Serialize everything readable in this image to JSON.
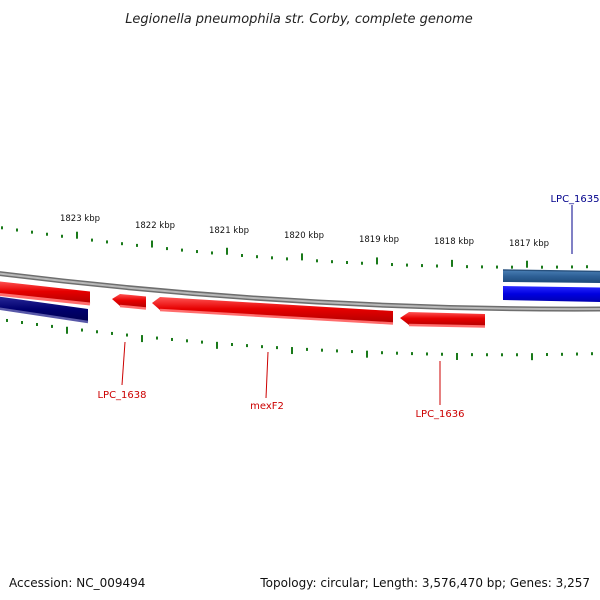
{
  "title": "Legionella pneumophila str. Corby, complete genome",
  "footer": {
    "accession": "Accession: NC_009494",
    "summary": "Topology: circular; Length: 3,576,470 bp; Genes: 3,257"
  },
  "ticks": {
    "labels": [
      "1823 kbp",
      "1822 kbp",
      "1821 kbp",
      "1820 kbp",
      "1819 kbp",
      "1818 kbp",
      "1817 kbp"
    ],
    "color": "#1a7a1a"
  },
  "backbone": {
    "color": "#8a8a8a"
  },
  "features": [
    {
      "name": "LPC_1635",
      "strand": "forward",
      "color": "#0000cc",
      "label_color": "#00008b"
    },
    {
      "name": "LPC_1636",
      "strand": "reverse",
      "color": "#e60000",
      "label_color": "#cc0000"
    },
    {
      "name": "mexF2",
      "strand": "reverse",
      "color": "#e60000",
      "label_color": "#cc0000"
    },
    {
      "name": "LPC_1638",
      "strand": "reverse",
      "color": "#e60000",
      "label_color": "#cc0000"
    }
  ],
  "colors": {
    "reverse_feature": "#e60000",
    "forward_feature": "#0000cc",
    "forward_feature_dark": "#000080",
    "forward_feature_light": "#4a7fb5"
  }
}
